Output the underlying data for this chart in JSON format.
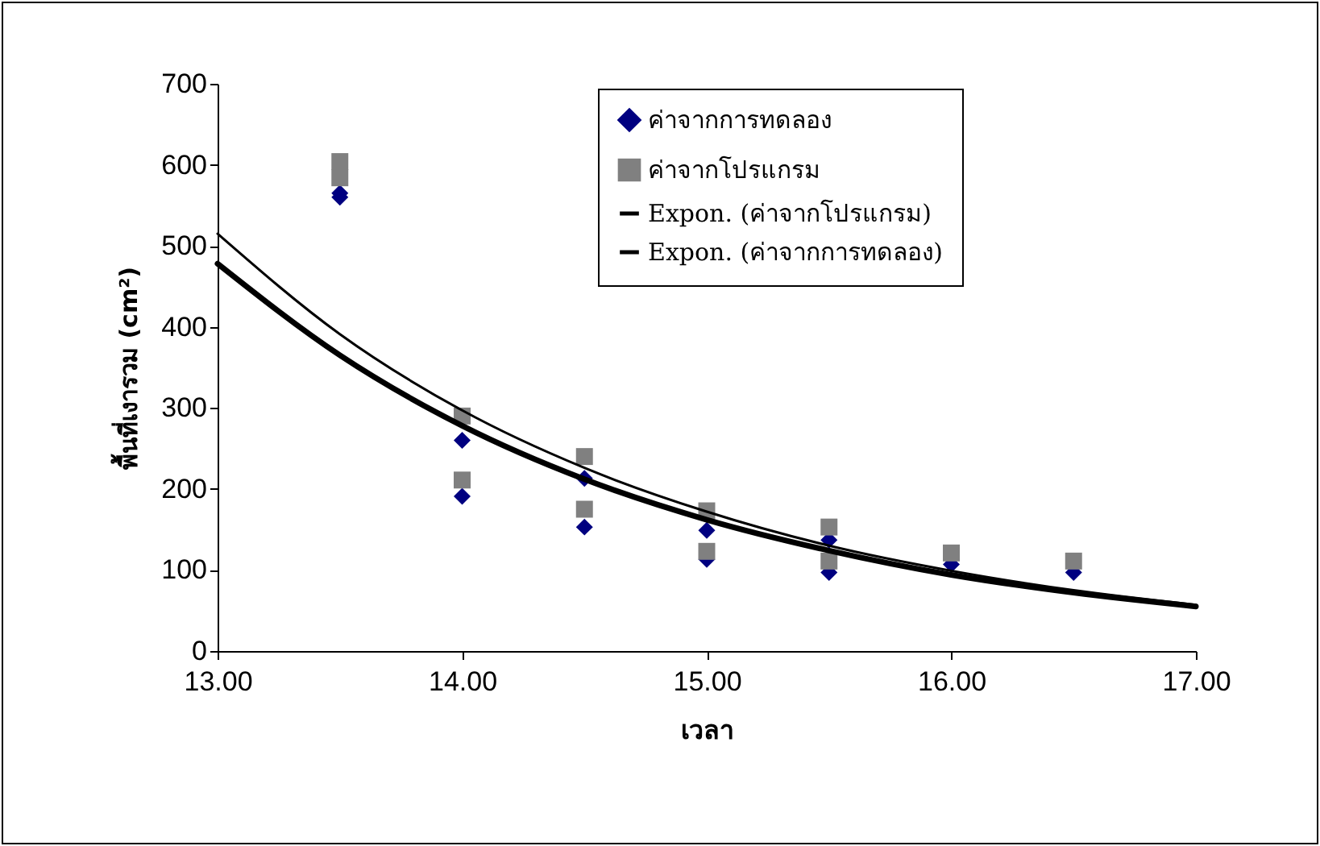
{
  "chart_data": {
    "type": "scatter",
    "xlabel": "เวลา",
    "ylabel": "พื้นที่เงารวม (cm²)",
    "xlim": [
      13,
      17
    ],
    "xticks": [
      {
        "value": 13,
        "label": "13.00"
      },
      {
        "value": 14,
        "label": "14.00"
      },
      {
        "value": 15,
        "label": "15.00"
      },
      {
        "value": 16,
        "label": "16.00"
      },
      {
        "value": 17,
        "label": "17.00"
      }
    ],
    "ylim": [
      0,
      700
    ],
    "yticks": [
      0,
      100,
      200,
      300,
      400,
      500,
      600,
      700
    ],
    "grid": false,
    "legend": "top right",
    "series": [
      {
        "name": "ค่าจากการทดลอง",
        "marker": "diamond",
        "color": "#000080",
        "x": [
          13.5,
          13.5,
          14,
          14,
          14.5,
          14.5,
          15,
          15,
          15.5,
          15.5,
          16,
          16.5
        ],
        "values": [
          560,
          565,
          260,
          191,
          213,
          153,
          149,
          113,
          137,
          97,
          107,
          97
        ]
      },
      {
        "name": "ค่าจากโปรแกรม",
        "marker": "square",
        "color": "#808080",
        "x": [
          13.5,
          13.5,
          14,
          14,
          14.5,
          14.5,
          15,
          15,
          15.5,
          15.5,
          16,
          16.5
        ],
        "values": [
          604,
          584,
          290,
          211,
          240,
          175,
          173,
          123,
          153,
          111,
          121,
          111
        ]
      },
      {
        "name": "Expon. (ค่าจากโปรแกรม)",
        "type": "line",
        "marker": "none",
        "color": "#000000",
        "x": [
          13,
          13.5,
          14,
          14.5,
          15,
          15.5,
          16,
          16.5,
          17
        ],
        "values": [
          515,
          391,
          297,
          226,
          172,
          130,
          99,
          75,
          57
        ]
      },
      {
        "name": "Expon. (ค่าจากการทดลอง)",
        "type": "line",
        "marker": "none",
        "color": "#000000",
        "x": [
          13,
          13.5,
          14,
          14.5,
          15,
          15.5,
          16,
          16.5,
          17
        ],
        "values": [
          478,
          365,
          278,
          212,
          162,
          124,
          94,
          72,
          55
        ]
      }
    ]
  }
}
